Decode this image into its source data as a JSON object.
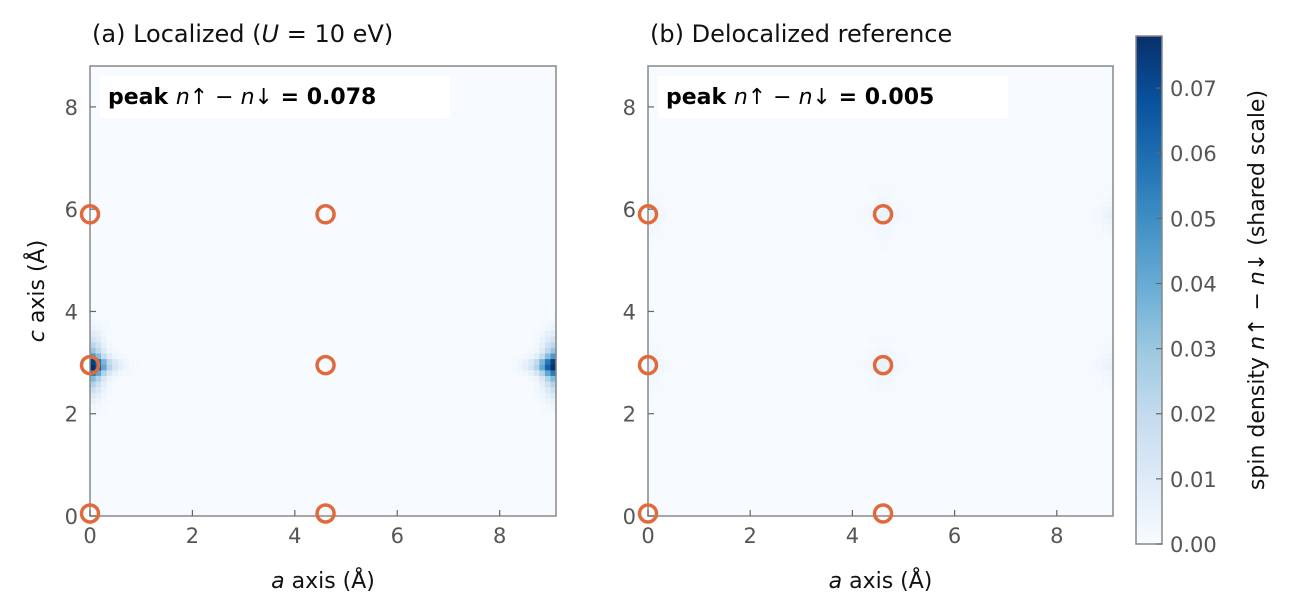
{
  "chart_data": [
    {
      "type": "heatmap",
      "title_parts": [
        "(a) Localized (",
        "U",
        " = 10 eV)"
      ],
      "xlabel_parts": [
        "a",
        " axis (Å)"
      ],
      "ylabel_parts": [
        "c",
        " axis (Å)"
      ],
      "xlim": [
        0,
        9.1
      ],
      "ylim": [
        0,
        8.8
      ],
      "xticks": [
        "0",
        "2",
        "4",
        "6",
        "8"
      ],
      "yticks": [
        "0",
        "2",
        "4",
        "6",
        "8"
      ],
      "annotation": {
        "prefix": "peak ",
        "symbol": "n↑ − n↓",
        "value": " = 0.078"
      },
      "peak": 0.078,
      "hotspots": [
        {
          "x": 0.0,
          "y": 2.95,
          "amplitude": 0.078
        },
        {
          "x": 9.1,
          "y": 2.95,
          "amplitude": 0.078
        }
      ],
      "atoms": [
        {
          "x": 0.0,
          "y": 0.05
        },
        {
          "x": 0.0,
          "y": 2.95
        },
        {
          "x": 0.0,
          "y": 5.9
        },
        {
          "x": 4.6,
          "y": 0.05
        },
        {
          "x": 4.6,
          "y": 2.95
        },
        {
          "x": 4.6,
          "y": 5.9
        }
      ]
    },
    {
      "type": "heatmap",
      "title_parts": [
        "(b) Delocalized reference"
      ],
      "xlabel_parts": [
        "a",
        " axis (Å)"
      ],
      "ylabel_parts": [],
      "xlim": [
        0,
        9.1
      ],
      "ylim": [
        0,
        8.8
      ],
      "xticks": [
        "0",
        "2",
        "4",
        "6",
        "8"
      ],
      "yticks": [
        "0",
        "2",
        "4",
        "6",
        "8"
      ],
      "annotation": {
        "prefix": "peak ",
        "symbol": "n↑ − n↓",
        "value": " = 0.005"
      },
      "peak": 0.005,
      "hotspots": [
        {
          "x": 0.0,
          "y": 2.95,
          "amplitude": 0.005
        },
        {
          "x": 0.0,
          "y": 5.9,
          "amplitude": 0.005
        },
        {
          "x": 4.6,
          "y": 2.95,
          "amplitude": 0.005
        },
        {
          "x": 4.6,
          "y": 5.9,
          "amplitude": 0.005
        },
        {
          "x": 9.1,
          "y": 2.95,
          "amplitude": 0.005
        },
        {
          "x": 9.1,
          "y": 5.9,
          "amplitude": 0.005
        }
      ],
      "atoms": [
        {
          "x": 0.0,
          "y": 0.05
        },
        {
          "x": 0.0,
          "y": 2.95
        },
        {
          "x": 0.0,
          "y": 5.9
        },
        {
          "x": 4.6,
          "y": 0.05
        },
        {
          "x": 4.6,
          "y": 2.95
        },
        {
          "x": 4.6,
          "y": 5.9
        }
      ]
    }
  ],
  "colorbar": {
    "label_prefix": "spin density ",
    "label_symbol": "n↑ − n↓",
    "label_suffix": " (shared scale)",
    "min": 0.0,
    "max": 0.078,
    "ticks": [
      "0.00",
      "0.01",
      "0.02",
      "0.03",
      "0.04",
      "0.05",
      "0.06",
      "0.07"
    ],
    "colormap": "Blues"
  },
  "colors": {
    "atom_marker": "#E06A3B",
    "frame": "#888888",
    "cmap_low": "#F7FBFF",
    "cmap_high": "#08306B"
  }
}
